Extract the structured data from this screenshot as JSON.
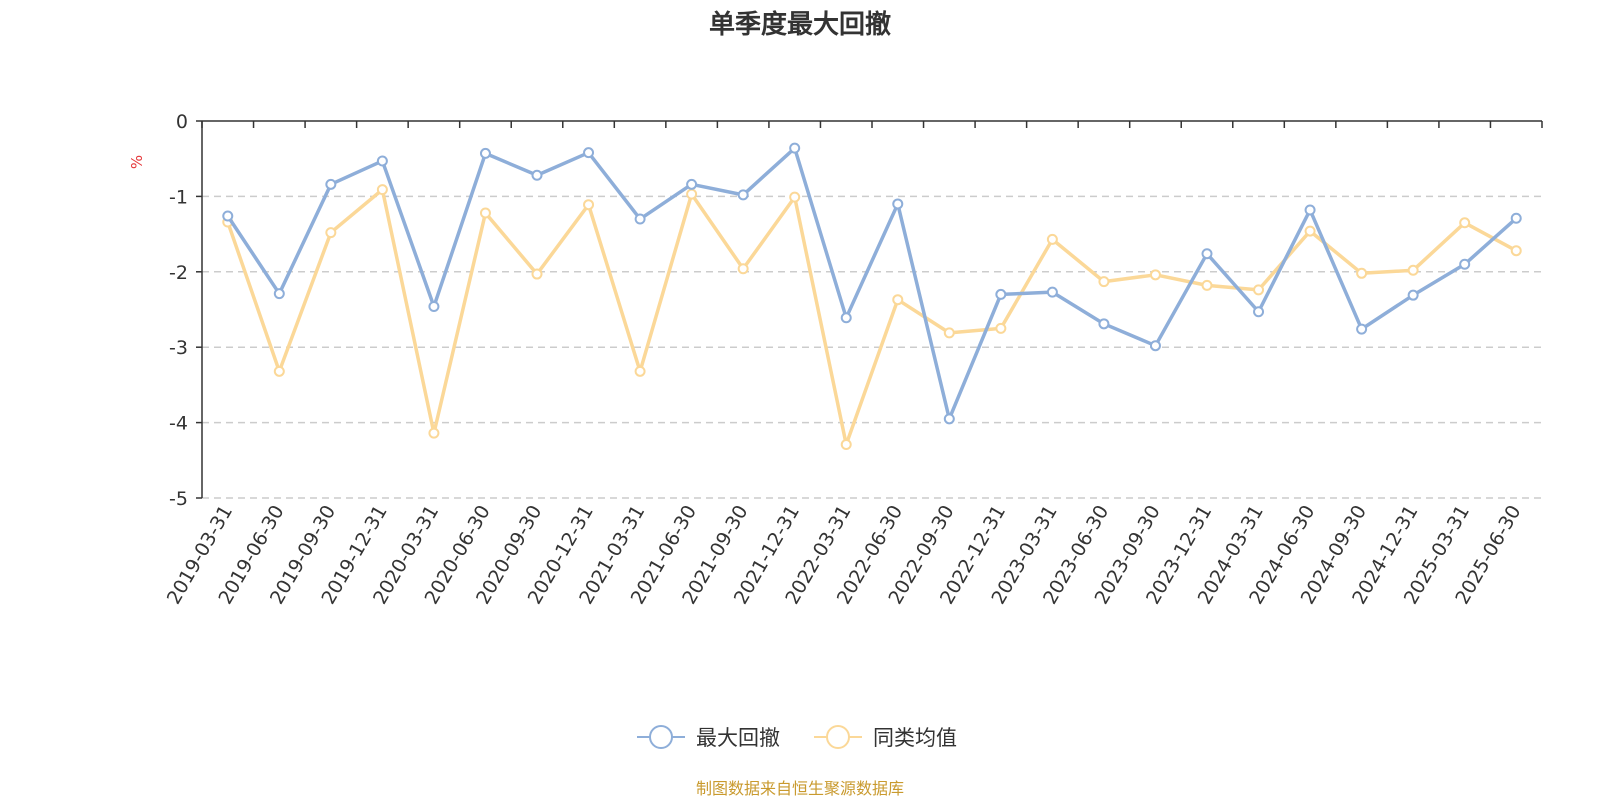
{
  "colors": {
    "series1": "#8eaed9",
    "series2": "#fbd898",
    "unit": "#e5383b",
    "source": "#c99a2e",
    "grid": "#cccccc",
    "axis": "#333333",
    "text": "#333333"
  },
  "source_note": "制图数据来自恒生聚源数据库",
  "chart_data": {
    "type": "line",
    "title": "单季度最大回撤",
    "ylabel": "%",
    "ylim": [
      -5,
      0
    ],
    "yticks": [
      0,
      -1,
      -2,
      -3,
      -4,
      -5
    ],
    "grid": "horizontal-dashed",
    "legend_position": "bottom-center",
    "categories": [
      "2019-03-31",
      "2019-06-30",
      "2019-09-30",
      "2019-12-31",
      "2020-03-31",
      "2020-06-30",
      "2020-09-30",
      "2020-12-31",
      "2021-03-31",
      "2021-06-30",
      "2021-09-30",
      "2021-12-31",
      "2022-03-31",
      "2022-06-30",
      "2022-09-30",
      "2022-12-31",
      "2023-03-31",
      "2023-06-30",
      "2023-09-30",
      "2023-12-31",
      "2024-03-31",
      "2024-06-30",
      "2024-09-30",
      "2024-12-31",
      "2025-03-31",
      "2025-06-30"
    ],
    "series": [
      {
        "name": "最大回撤",
        "values": [
          -1.26,
          -2.29,
          -0.84,
          -0.53,
          -2.46,
          -0.43,
          -0.72,
          -0.42,
          -1.3,
          -0.84,
          -0.98,
          -0.36,
          -2.61,
          -1.1,
          -3.95,
          -2.3,
          -2.27,
          -2.69,
          -2.98,
          -1.76,
          -2.53,
          -1.18,
          -2.76,
          -2.31,
          -1.9,
          -1.29
        ]
      },
      {
        "name": "同类均值",
        "values": [
          -1.34,
          -3.32,
          -1.48,
          -0.91,
          -4.14,
          -1.22,
          -2.03,
          -1.11,
          -3.32,
          -0.97,
          -1.96,
          -1.01,
          -4.29,
          -2.37,
          -2.81,
          -2.75,
          -1.57,
          -2.13,
          -2.04,
          -2.18,
          -2.24,
          -1.46,
          -2.02,
          -1.98,
          -1.35,
          -1.72
        ]
      }
    ]
  }
}
